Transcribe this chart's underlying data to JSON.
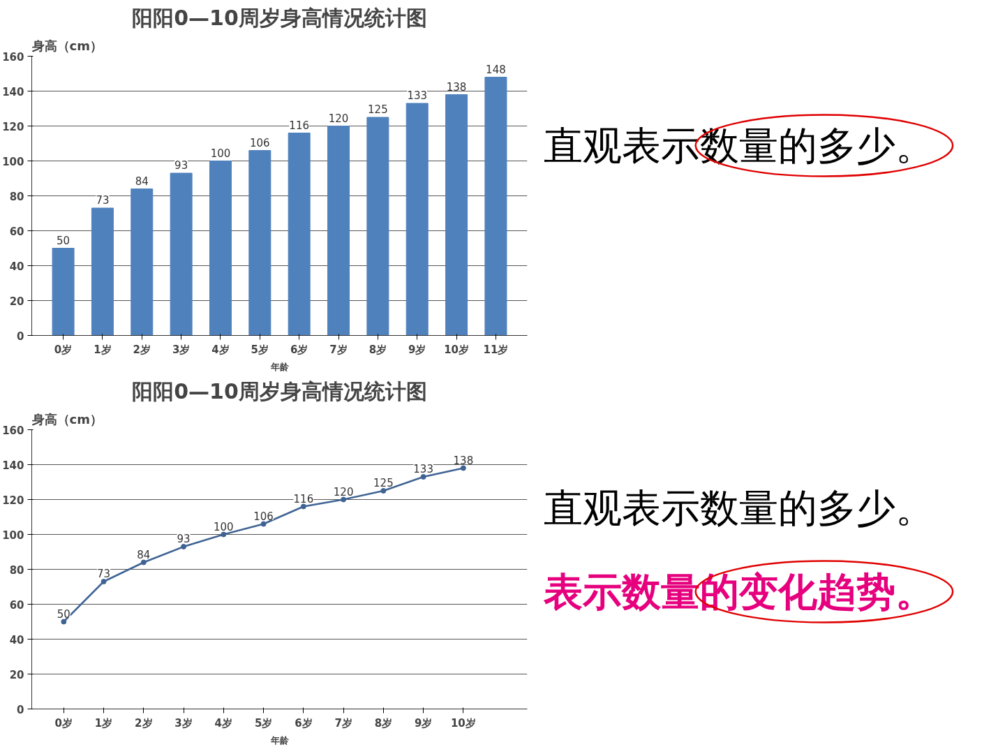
{
  "chart_data": [
    {
      "type": "bar",
      "title": "阳阳0—10周岁身高情况统计图",
      "ylabel": "身高（cm）",
      "xlabel": "年龄",
      "categories": [
        "0岁",
        "1岁",
        "2岁",
        "3岁",
        "4岁",
        "5岁",
        "6岁",
        "7岁",
        "8岁",
        "9岁",
        "10岁",
        "11岁"
      ],
      "values": [
        50,
        73,
        84,
        93,
        100,
        106,
        116,
        120,
        125,
        133,
        138,
        148
      ],
      "color": "#4f81bd",
      "ylim": [
        0,
        160
      ],
      "yticks": [
        0,
        20,
        40,
        60,
        80,
        100,
        120,
        140,
        160
      ],
      "grid": "y",
      "data_labels": true,
      "annotations": [
        "直观表示数量的多少。"
      ]
    },
    {
      "type": "line",
      "title": "阳阳0—10周岁身高情况统计图",
      "ylabel": "身高（cm）",
      "xlabel": "年龄",
      "categories": [
        "0岁",
        "1岁",
        "2岁",
        "3岁",
        "4岁",
        "5岁",
        "6岁",
        "7岁",
        "8岁",
        "9岁",
        "10岁"
      ],
      "values": [
        50,
        73,
        84,
        93,
        100,
        106,
        116,
        120,
        125,
        133,
        138
      ],
      "color": "#3f6494",
      "ylim": [
        0,
        160
      ],
      "yticks": [
        0,
        20,
        40,
        60,
        80,
        100,
        120,
        140,
        160
      ],
      "grid": "y",
      "marker": "circle",
      "data_labels": true,
      "annotations": [
        "直观表示数量的多少。",
        "表示数量的变化趋势。"
      ]
    }
  ]
}
